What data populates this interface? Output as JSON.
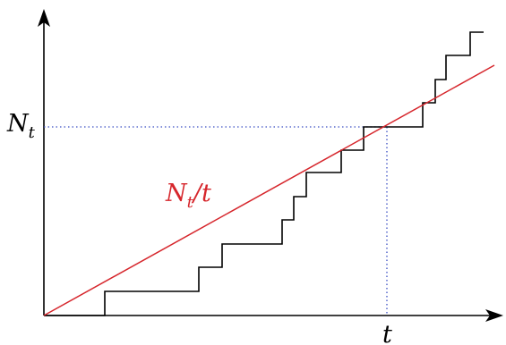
{
  "labels": {
    "y_level": {
      "main": "N",
      "sub": "t"
    },
    "x_level": "t",
    "line": {
      "main": "N",
      "sub": "t",
      "tail": "/t"
    }
  },
  "colors": {
    "axis": "#000000",
    "step": "#000000",
    "line": "#d6262c",
    "guide": "#3b4fc4"
  }
}
